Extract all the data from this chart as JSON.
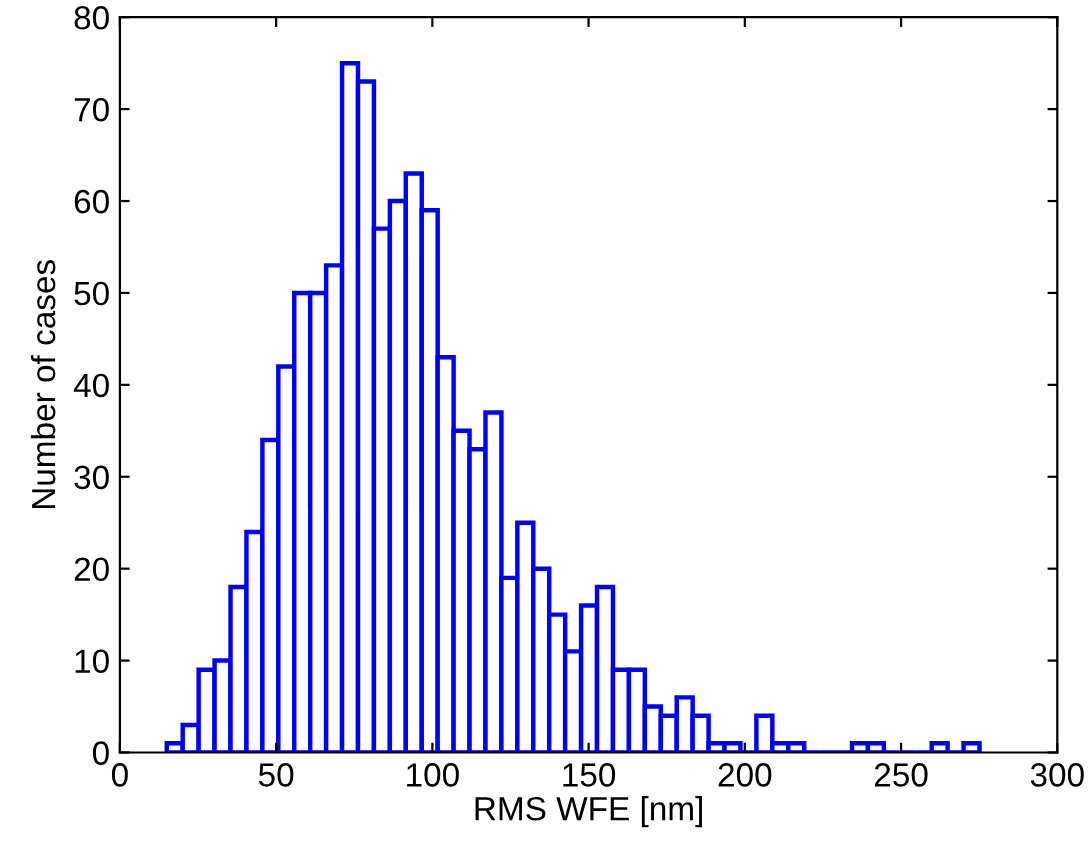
{
  "chart_data": {
    "type": "histogram",
    "xlabel": "RMS WFE [nm]",
    "ylabel": "Number of cases",
    "color": "#0000ff",
    "bins": [
      15,
      20.1,
      25.2,
      30.3,
      35.4,
      40.5,
      45.6,
      50.7,
      55.8,
      60.9,
      66,
      71.1,
      76.2,
      81.3,
      86.4,
      91.5,
      96.6,
      101.7,
      106.8,
      111.9,
      117,
      122.1,
      127.2,
      132.3,
      137.4,
      142.5,
      147.6,
      152.7,
      157.8,
      162.9,
      168,
      173.1,
      178.2,
      183.3,
      188.4,
      193.5,
      198.6,
      203.7,
      208.8,
      213.9,
      219,
      224.1,
      229.2,
      234.3,
      239.4,
      244.5,
      249.6,
      254.7,
      259.8,
      264.9,
      270,
      275.1
    ],
    "values": [
      1,
      3,
      9,
      10,
      18,
      24,
      34,
      42,
      50,
      50,
      53,
      75,
      73,
      57,
      60,
      63,
      59,
      43,
      35,
      33,
      37,
      19,
      25,
      20,
      15,
      11,
      16,
      18,
      9,
      9,
      5,
      4,
      6,
      4,
      1,
      1,
      0,
      4,
      1,
      1,
      0,
      0,
      0,
      1,
      1,
      0,
      0,
      0,
      1,
      0,
      1
    ],
    "xlim": [
      0,
      300
    ],
    "ylim": [
      0,
      80
    ],
    "xticks": [
      0,
      50,
      100,
      150,
      200,
      250,
      300
    ],
    "yticks": [
      0,
      10,
      20,
      30,
      40,
      50,
      60,
      70,
      80
    ],
    "grid": false,
    "legend": false
  }
}
